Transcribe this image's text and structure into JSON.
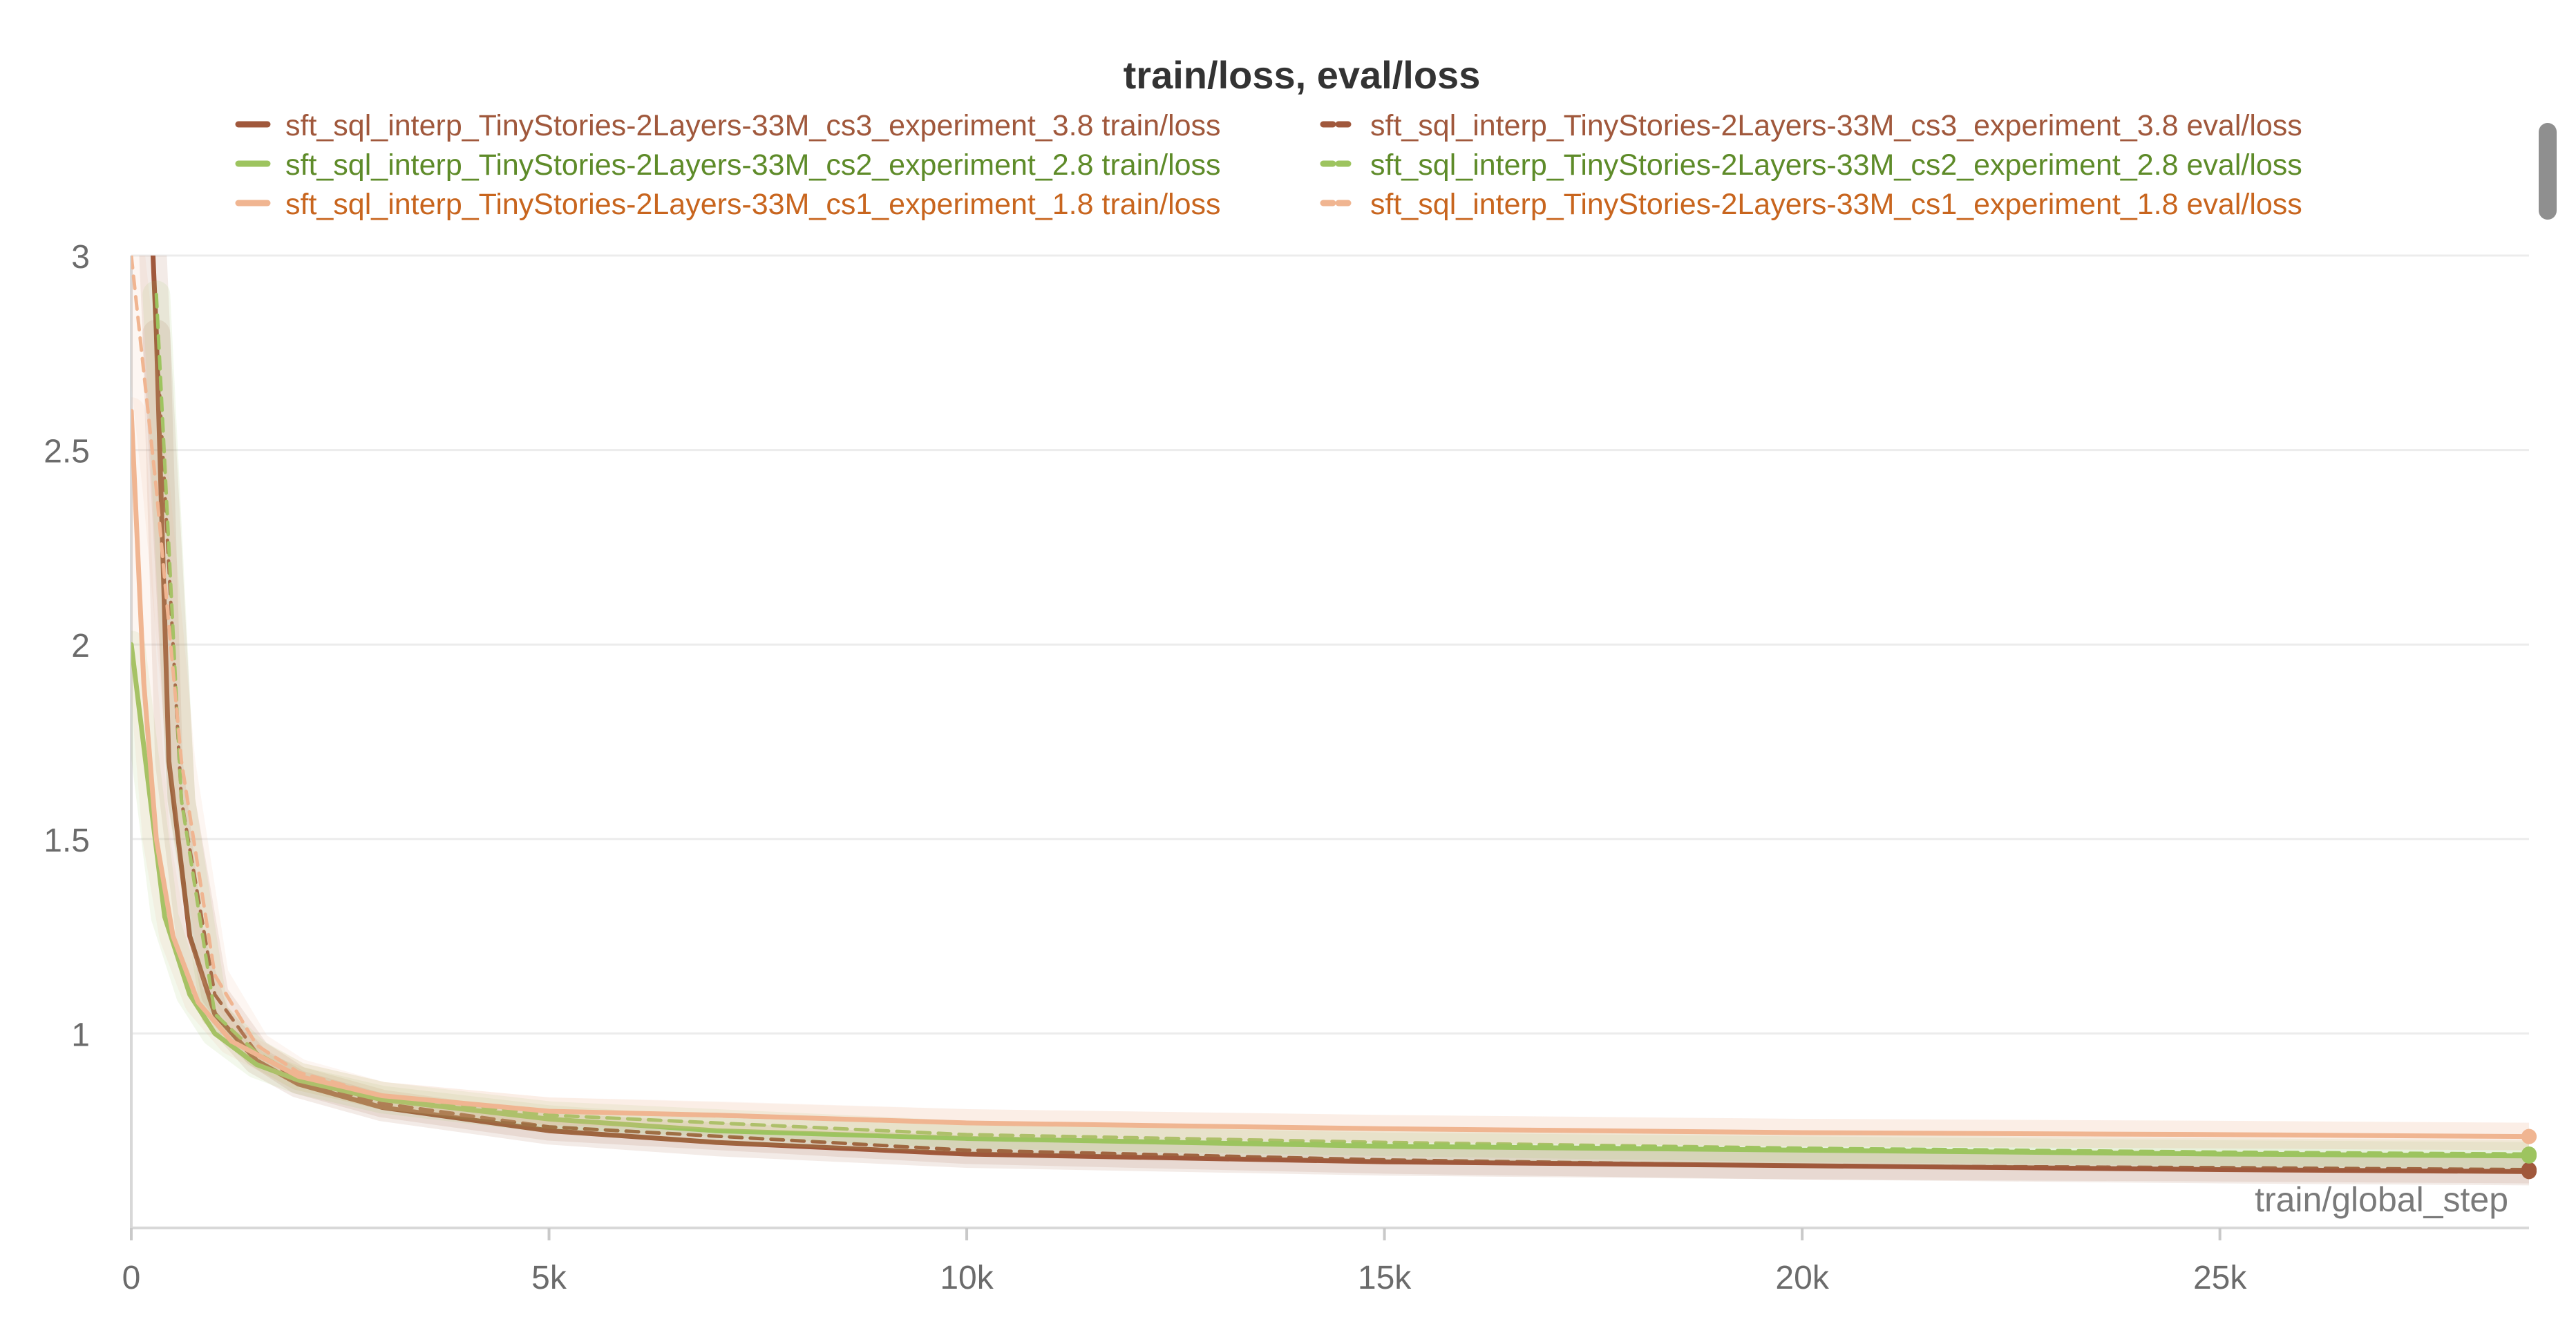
{
  "chart_data": {
    "type": "line",
    "title": "train/loss, eval/loss",
    "xlabel": "train/global_step",
    "ylabel": "",
    "xlim": [
      0,
      28700
    ],
    "ylim": [
      0.5,
      3.0
    ],
    "x_ticks": [
      0,
      5000,
      10000,
      15000,
      20000,
      25000
    ],
    "x_tick_labels": [
      "0",
      "5k",
      "10k",
      "15k",
      "20k",
      "25k"
    ],
    "y_ticks": [
      1,
      1.5,
      2,
      2.5,
      3
    ],
    "y_tick_labels": [
      "1",
      "1.5",
      "2",
      "2.5",
      "3"
    ],
    "grid": true,
    "legend_position": "top",
    "series": [
      {
        "name": "sft_sql_interp_TinyStories-2Layers-33M_cs3_experiment_3.8 train/loss",
        "color": "#a0583c",
        "style": "solid",
        "x": [
          220,
          300,
          450,
          700,
          1000,
          1500,
          2000,
          3000,
          5000,
          7000,
          10000,
          15000,
          20000,
          25000,
          28700
        ],
        "y": [
          3.2,
          2.8,
          1.7,
          1.25,
          1.05,
          0.93,
          0.87,
          0.81,
          0.75,
          0.72,
          0.69,
          0.67,
          0.66,
          0.65,
          0.645
        ]
      },
      {
        "name": "sft_sql_interp_TinyStories-2Layers-33M_cs3_experiment_3.8 eval/loss",
        "color": "#a0583c",
        "style": "dashed",
        "x": [
          300,
          600,
          1000,
          1500,
          2000,
          3000,
          5000,
          10000,
          15000,
          20000,
          25000,
          28700
        ],
        "y": [
          2.8,
          1.6,
          1.1,
          0.95,
          0.88,
          0.82,
          0.76,
          0.7,
          0.675,
          0.66,
          0.655,
          0.65
        ]
      },
      {
        "name": "sft_sql_interp_TinyStories-2Layers-33M_cs2_experiment_2.8 train/loss",
        "color": "#9dc45f",
        "style": "solid",
        "x": [
          0,
          200,
          400,
          700,
          1000,
          1500,
          2000,
          3000,
          5000,
          7000,
          10000,
          15000,
          20000,
          25000,
          28700
        ],
        "y": [
          2.0,
          1.65,
          1.3,
          1.1,
          1.0,
          0.92,
          0.88,
          0.83,
          0.78,
          0.75,
          0.73,
          0.71,
          0.7,
          0.69,
          0.685
        ]
      },
      {
        "name": "sft_sql_interp_TinyStories-2Layers-33M_cs2_experiment_2.8 eval/loss",
        "color": "#9dc45f",
        "style": "dashed",
        "x": [
          300,
          600,
          1000,
          1500,
          2000,
          3000,
          5000,
          10000,
          15000,
          20000,
          25000,
          28700
        ],
        "y": [
          2.9,
          1.6,
          1.05,
          0.95,
          0.89,
          0.84,
          0.79,
          0.74,
          0.72,
          0.705,
          0.695,
          0.69
        ]
      },
      {
        "name": "sft_sql_interp_TinyStories-2Layers-33M_cs1_experiment_1.8 train/loss",
        "color": "#f0b591",
        "style": "solid",
        "x": [
          0,
          150,
          300,
          500,
          800,
          1200,
          2000,
          3000,
          5000,
          7000,
          10000,
          15000,
          20000,
          25000,
          28700
        ],
        "y": [
          2.6,
          1.9,
          1.5,
          1.25,
          1.08,
          0.98,
          0.89,
          0.84,
          0.8,
          0.79,
          0.77,
          0.755,
          0.745,
          0.74,
          0.735
        ]
      },
      {
        "name": "sft_sql_interp_TinyStories-2Layers-33M_cs1_experiment_1.8 eval/loss",
        "color": "#f0b591",
        "style": "dashed",
        "x": [
          0,
          300,
          600,
          1000,
          1500,
          2000,
          3000,
          5000,
          10000,
          15000,
          20000,
          25000,
          28700
        ],
        "y": [
          3.0,
          2.4,
          1.7,
          1.15,
          0.97,
          0.9,
          0.84,
          0.8,
          0.77,
          0.755,
          0.745,
          0.74,
          0.735
        ]
      }
    ]
  }
}
